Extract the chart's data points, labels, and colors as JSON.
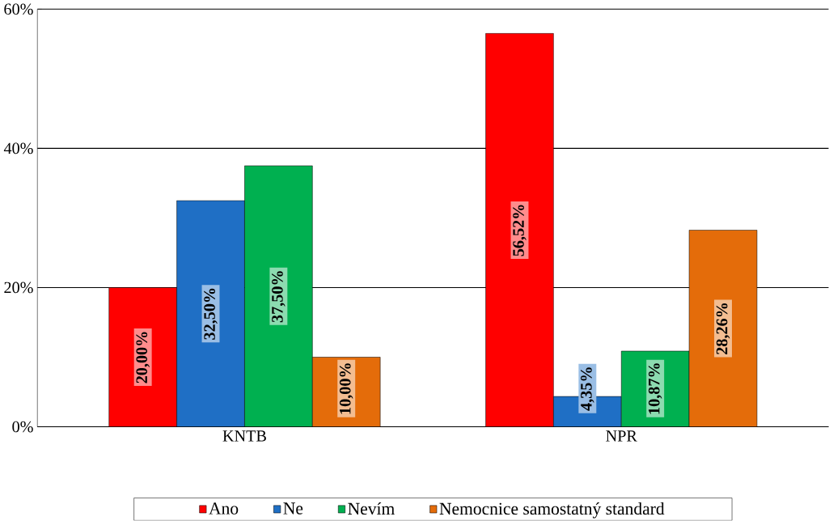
{
  "chart_data": {
    "type": "bar",
    "categories": [
      "KNTB",
      "NPR"
    ],
    "series": [
      {
        "name": "Ano",
        "color": "#ff0000",
        "values": [
          20.0,
          56.52
        ],
        "value_labels": [
          "20,00%",
          "56,52%"
        ]
      },
      {
        "name": "Ne",
        "color": "#1f6fc5",
        "values": [
          32.5,
          4.35
        ],
        "value_labels": [
          "32,50%",
          "4,35%"
        ]
      },
      {
        "name": "Nevím",
        "color": "#00b050",
        "values": [
          37.5,
          10.87
        ],
        "value_labels": [
          "37,50%",
          "10,87%"
        ]
      },
      {
        "name": "Nemocnice samostatný standard",
        "color": "#e46c0a",
        "values": [
          10.0,
          28.26
        ],
        "value_labels": [
          "10,00%",
          "28,26%"
        ]
      }
    ],
    "ylim": [
      0,
      60
    ],
    "yticks": [
      {
        "value": 0,
        "label": "0%"
      },
      {
        "value": 20,
        "label": "20%"
      },
      {
        "value": 40,
        "label": "40%"
      },
      {
        "value": 60,
        "label": "60%"
      }
    ],
    "grid": "y",
    "legend": "bottom"
  }
}
